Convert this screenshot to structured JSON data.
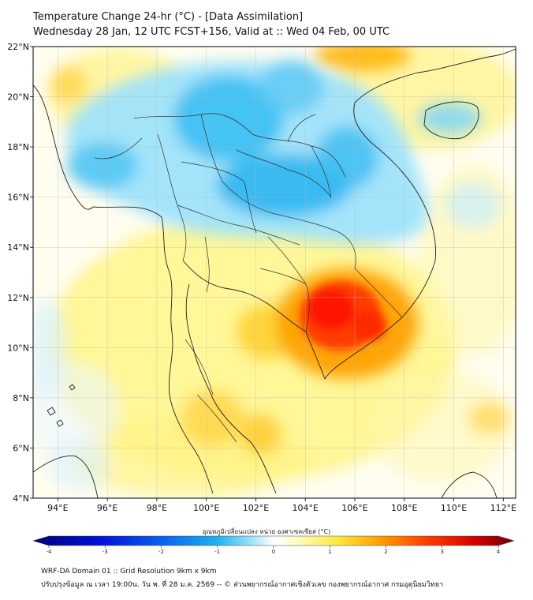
{
  "title": {
    "line1": "Temperature Change 24-hr (°C) - [Data Assimilation]",
    "line2": "Wednesday 28 Jan, 12 UTC FCST+156, Valid at :: Wed 04 Feb, 00 UTC"
  },
  "map": {
    "lat_range": [
      4,
      22
    ],
    "lon_range": [
      93,
      112.5
    ],
    "lat_ticks": [
      {
        "value": 4,
        "label": "4°N"
      },
      {
        "value": 6,
        "label": "6°N"
      },
      {
        "value": 8,
        "label": "8°N"
      },
      {
        "value": 10,
        "label": "10°N"
      },
      {
        "value": 12,
        "label": "12°N"
      },
      {
        "value": 14,
        "label": "14°N"
      },
      {
        "value": 16,
        "label": "16°N"
      },
      {
        "value": 18,
        "label": "18°N"
      },
      {
        "value": 20,
        "label": "20°N"
      },
      {
        "value": 22,
        "label": "22°N"
      }
    ],
    "lon_ticks": [
      {
        "value": 94,
        "label": "94°E"
      },
      {
        "value": 96,
        "label": "96°E"
      },
      {
        "value": 98,
        "label": "98°E"
      },
      {
        "value": 100,
        "label": "100°E"
      },
      {
        "value": 102,
        "label": "102°E"
      },
      {
        "value": 104,
        "label": "104°E"
      },
      {
        "value": 106,
        "label": "106°E"
      },
      {
        "value": 108,
        "label": "108°E"
      },
      {
        "value": 110,
        "label": "110°E"
      },
      {
        "value": 112,
        "label": "112°E"
      }
    ],
    "grid": true,
    "colors": {
      "warm": "#ff2a00",
      "warm_mid": "#ffa500",
      "warm_light": "#fff59a",
      "cool": "#1ab0ee",
      "cool_light": "#9fe3fb",
      "neutral": "#ffffff"
    }
  },
  "colorbar": {
    "label": "อุณหภูมิเปลี่ยนแปลง หน่วย องศาเซลเซียส (°C)",
    "min": -4,
    "max": 4,
    "tick_values": [
      -4,
      -3,
      -2,
      -1,
      0,
      1,
      2,
      3,
      4
    ],
    "tick_labels": [
      "-4",
      "-3",
      "-2",
      "-1",
      "0",
      "1",
      "2",
      "3",
      "4"
    ]
  },
  "footer": {
    "line1": "WRF-DA Domain 01 :: Grid Resolution 9km x 9km",
    "line2": "ปรับปรุงข้อมูล ณ เวลา 19:00น. วัน พ. ที่ 28 ม.ค. 2569 -- © ส่วนพยากรณ์อากาศเชิงตัวเลข กองพยากรณ์อากาศ กรมอุตุนิยมวิทยา"
  }
}
